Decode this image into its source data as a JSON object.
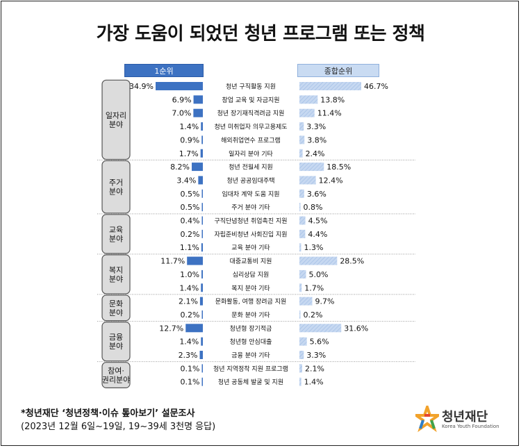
{
  "title": "가장 도움이 되었던 청년 프로그램 또는 정책",
  "headers": {
    "first": "1순위",
    "overall": "종합순위"
  },
  "colors": {
    "first": "#3d72c2",
    "overall": "#b7cdee",
    "overall_hatch": "#8fb0dc",
    "group_box": "#dcdcdc"
  },
  "chart_data": {
    "type": "bar",
    "orientation": "horizontal",
    "series": [
      {
        "name": "1순위",
        "direction": "left",
        "values": [
          34.9,
          6.9,
          7.0,
          1.4,
          0.9,
          1.7,
          8.2,
          3.4,
          0.5,
          0.5,
          0.4,
          0.2,
          1.1,
          11.7,
          1.0,
          1.4,
          2.1,
          0.2,
          12.7,
          1.4,
          2.3,
          0.1,
          0.1
        ]
      },
      {
        "name": "종합순위",
        "direction": "right",
        "values": [
          46.7,
          13.8,
          11.4,
          3.3,
          3.8,
          2.4,
          18.5,
          12.4,
          3.6,
          0.8,
          4.5,
          4.4,
          1.3,
          28.5,
          5.0,
          1.7,
          9.7,
          0.2,
          31.6,
          5.6,
          3.3,
          2.1,
          1.4
        ]
      }
    ],
    "categories": [
      "청년 구직활동 지원",
      "창업 교육 및 자금지원",
      "청년 장기재직격려금 지원",
      "청년 미취업자 의무고용제도",
      "해외취업연수 프로그램",
      "일자리 분야 기타",
      "청년 전월세 지원",
      "청년 공공임대주택",
      "임대차 계약 도움 지원",
      "주거 분야 기타",
      "구직단념청년 취업촉진 지원",
      "자립준비청년 사회진입 지원",
      "교육 분야 기타",
      "대중교통비 지원",
      "심리상담 지원",
      "복지 분야 기타",
      "문화활동, 여행 장려금 지원",
      "문화 분야 기타",
      "청년형 장기적금",
      "청년형 안심대출",
      "금융 분야 기타",
      "청년 지역정착 지원 프로그램",
      "청년 공동체 발굴 및 지원"
    ],
    "first_labels": [
      "34.9%",
      "6.9%",
      "7.0%",
      "1.4%",
      "0.9%",
      "1.7%",
      "8.2%",
      "3.4%",
      "0.5%",
      "0.5%",
      "0.4%",
      "0.2%",
      "1.1%",
      "11.7%",
      "1.0%",
      "1.4%",
      "2.1%",
      "0.2%",
      "12.7%",
      "1.4%",
      "2.3%",
      "0.1%",
      "0.1%"
    ],
    "overall_labels": [
      "46.7%",
      "13.8%",
      "11.4%",
      "3.3%",
      "3.8%",
      "2.4%",
      "18.5%",
      "12.4%",
      "3.6%",
      "0.8%",
      "4.5%",
      "4.4%",
      "1.3%",
      "28.5%",
      "5.0%",
      "1.7%",
      "9.7%",
      "0.2%",
      "31.6%",
      "5.6%",
      "3.3%",
      "2.1%",
      "1.4%"
    ],
    "groups": [
      {
        "lines": [
          "일자리",
          "분야"
        ],
        "count": 6
      },
      {
        "lines": [
          "주거",
          "분야"
        ],
        "count": 4
      },
      {
        "lines": [
          "교육",
          "분야"
        ],
        "count": 3
      },
      {
        "lines": [
          "복지",
          "분야"
        ],
        "count": 3
      },
      {
        "lines": [
          "문화",
          "분야"
        ],
        "count": 2
      },
      {
        "lines": [
          "금융",
          "분야"
        ],
        "count": 3
      },
      {
        "lines": [
          "참여·",
          "권리분야"
        ],
        "count": 2
      }
    ]
  },
  "footnote": {
    "line1": "*청년재단 ‘청년정책·이슈 톺아보기’ 설문조사",
    "line2": "(2023년 12월 6일~19일, 19~39세 3천명 응답)"
  },
  "logo": {
    "name": "청년재단",
    "subtitle": "Korea Youth Foundation"
  }
}
